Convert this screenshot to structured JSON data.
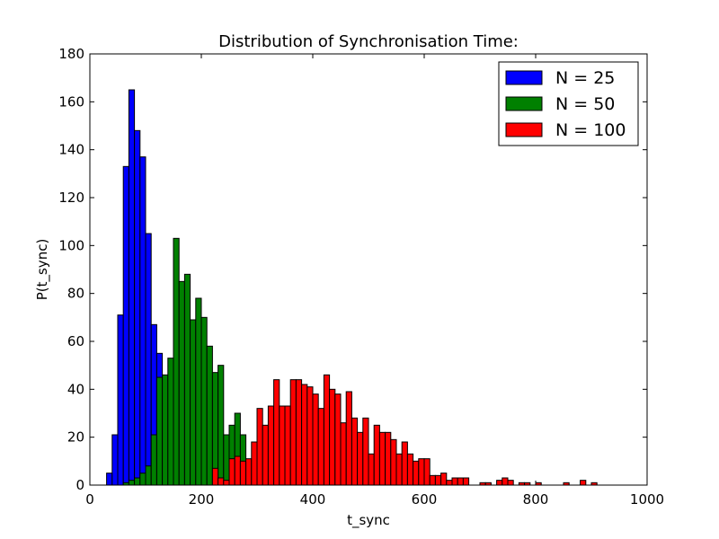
{
  "chart_data": {
    "type": "bar",
    "title": "Distribution of Synchronisation Time:",
    "xlabel": "t_sync",
    "ylabel": "P(t_sync)",
    "xlim": [
      0,
      1000
    ],
    "ylim": [
      0,
      180
    ],
    "xticks": [
      "0",
      "200",
      "400",
      "600",
      "800",
      "1000"
    ],
    "yticks": [
      "0",
      "20",
      "40",
      "60",
      "80",
      "100",
      "120",
      "140",
      "160",
      "180"
    ],
    "legend_position": "top-right",
    "series": [
      {
        "name": "N = 25",
        "color": "#0000ff",
        "bins": [
          [
            30,
            5
          ],
          [
            40,
            21
          ],
          [
            50,
            71
          ],
          [
            60,
            133
          ],
          [
            70,
            165
          ],
          [
            80,
            148
          ],
          [
            90,
            137
          ],
          [
            100,
            105
          ],
          [
            110,
            67
          ],
          [
            120,
            55
          ],
          [
            130,
            42
          ],
          [
            140,
            28
          ],
          [
            150,
            13
          ],
          [
            160,
            9
          ],
          [
            170,
            5
          ],
          [
            180,
            3
          ],
          [
            190,
            2
          ],
          [
            200,
            1
          ]
        ]
      },
      {
        "name": "N = 50",
        "color": "#008000",
        "bins": [
          [
            60,
            1
          ],
          [
            70,
            2
          ],
          [
            80,
            3
          ],
          [
            90,
            5
          ],
          [
            100,
            8
          ],
          [
            110,
            21
          ],
          [
            120,
            45
          ],
          [
            130,
            46
          ],
          [
            140,
            53
          ],
          [
            150,
            103
          ],
          [
            160,
            85
          ],
          [
            170,
            88
          ],
          [
            180,
            69
          ],
          [
            190,
            78
          ],
          [
            200,
            70
          ],
          [
            210,
            58
          ],
          [
            220,
            47
          ],
          [
            230,
            50
          ],
          [
            240,
            21
          ],
          [
            250,
            25
          ],
          [
            260,
            30
          ],
          [
            270,
            21
          ],
          [
            280,
            10
          ],
          [
            290,
            6
          ],
          [
            300,
            3
          ],
          [
            310,
            1
          ]
        ]
      },
      {
        "name": "N = 100",
        "color": "#ff0000",
        "bins": [
          [
            220,
            7
          ],
          [
            230,
            3
          ],
          [
            240,
            2
          ],
          [
            250,
            11
          ],
          [
            260,
            12
          ],
          [
            270,
            10
          ],
          [
            280,
            11
          ],
          [
            290,
            18
          ],
          [
            300,
            32
          ],
          [
            310,
            25
          ],
          [
            320,
            33
          ],
          [
            330,
            44
          ],
          [
            340,
            33
          ],
          [
            350,
            33
          ],
          [
            360,
            44
          ],
          [
            370,
            44
          ],
          [
            380,
            42
          ],
          [
            390,
            41
          ],
          [
            400,
            38
          ],
          [
            410,
            32
          ],
          [
            420,
            46
          ],
          [
            430,
            40
          ],
          [
            440,
            38
          ],
          [
            450,
            26
          ],
          [
            460,
            39
          ],
          [
            470,
            28
          ],
          [
            480,
            22
          ],
          [
            490,
            28
          ],
          [
            500,
            13
          ],
          [
            510,
            25
          ],
          [
            520,
            22
          ],
          [
            530,
            22
          ],
          [
            540,
            19
          ],
          [
            550,
            13
          ],
          [
            560,
            18
          ],
          [
            570,
            13
          ],
          [
            580,
            10
          ],
          [
            590,
            11
          ],
          [
            600,
            11
          ],
          [
            610,
            4
          ],
          [
            620,
            4
          ],
          [
            630,
            5
          ],
          [
            640,
            2
          ],
          [
            650,
            3
          ],
          [
            660,
            3
          ],
          [
            670,
            3
          ],
          [
            700,
            1
          ],
          [
            710,
            1
          ],
          [
            730,
            2
          ],
          [
            740,
            3
          ],
          [
            750,
            2
          ],
          [
            770,
            1
          ],
          [
            780,
            1
          ],
          [
            800,
            1
          ],
          [
            850,
            1
          ],
          [
            880,
            2
          ],
          [
            900,
            1
          ]
        ]
      }
    ]
  }
}
